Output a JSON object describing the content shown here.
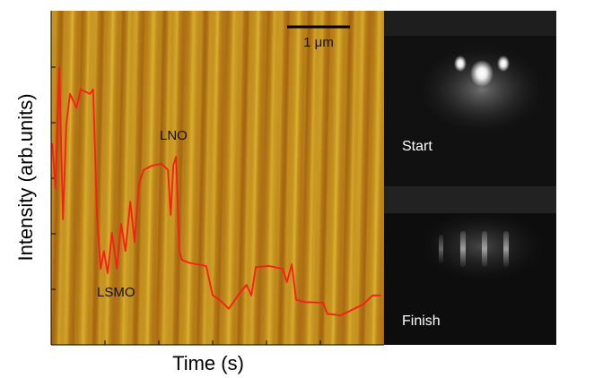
{
  "chart_data": {
    "type": "line",
    "xlabel": "Time (s)",
    "ylabel": "Intensity (arb.units)",
    "annotations": [
      "LNO",
      "LSMO",
      "1 μm",
      "Start",
      "Finish"
    ],
    "xlim": [
      0,
      6.2
    ],
    "ylim": [
      0,
      6
    ],
    "xticks": [
      1,
      2,
      3,
      4,
      5
    ],
    "yticks": [
      1,
      2,
      3,
      4,
      5
    ],
    "x": [
      0.02,
      0.08,
      0.15,
      0.22,
      0.28,
      0.35,
      0.47,
      0.55,
      0.72,
      0.78,
      0.85,
      0.92,
      0.98,
      1.05,
      1.13,
      1.22,
      1.3,
      1.38,
      1.47,
      1.55,
      1.63,
      1.72,
      1.88,
      2.05,
      2.17,
      2.22,
      2.27,
      2.32,
      2.38,
      2.43,
      2.55,
      2.88,
      3.0,
      3.13,
      3.3,
      3.47,
      3.63,
      3.72,
      3.8,
      4.05,
      4.3,
      4.38,
      4.47,
      4.55,
      4.72,
      5.05,
      5.13,
      5.38,
      5.63,
      5.8,
      5.97,
      6.13
    ],
    "series": [
      {
        "color": "#ff1a1a",
        "values": [
          3.63,
          2.82,
          5.0,
          2.26,
          3.95,
          4.52,
          4.27,
          4.6,
          4.52,
          4.6,
          2.34,
          1.37,
          1.69,
          1.29,
          2.02,
          1.37,
          2.18,
          1.69,
          2.58,
          1.85,
          2.9,
          3.15,
          3.23,
          3.26,
          3.15,
          2.34,
          3.23,
          3.39,
          1.69,
          1.53,
          1.48,
          1.42,
          0.89,
          0.81,
          0.65,
          0.89,
          1.08,
          0.89,
          1.4,
          1.42,
          1.37,
          1.13,
          1.45,
          0.81,
          0.77,
          0.76,
          0.56,
          0.53,
          0.65,
          0.73,
          0.89,
          0.89
        ]
      }
    ]
  }
}
